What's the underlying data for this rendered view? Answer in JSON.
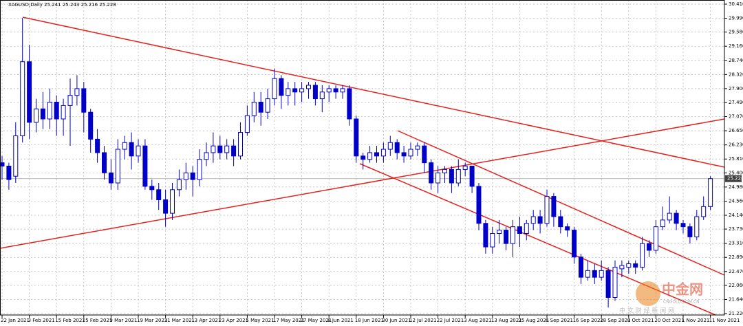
{
  "chart_data": {
    "type": "candlestick",
    "title": "XAGUSD;Daily  25.241 25.243 25.216 25.228",
    "categories": [
      "22 Jan 2021",
      null,
      null,
      null,
      "3 Feb 2021",
      null,
      null,
      null,
      "15 Feb 2021",
      null,
      null,
      null,
      "25 Feb 2021",
      null,
      null,
      null,
      "9 Mar 2021",
      null,
      null,
      null,
      "19 Mar 2021",
      null,
      null,
      null,
      "31 Mar 2021",
      null,
      null,
      null,
      "13 Apr 2021",
      null,
      null,
      null,
      "23 Apr 2021",
      null,
      null,
      null,
      "5 May 2021",
      null,
      null,
      null,
      "17 May 2021",
      null,
      null,
      null,
      "27 May 2021",
      null,
      null,
      null,
      "8 Jun 2021",
      null,
      null,
      null,
      "18 Jun 2021",
      null,
      null,
      null,
      "30 Jun 2021",
      null,
      null,
      null,
      "12 Jul 2021",
      null,
      null,
      null,
      "22 Jul 2021",
      null,
      null,
      null,
      "3 Aug 2021",
      null,
      null,
      null,
      "13 Aug 2021",
      null,
      null,
      null,
      "25 Aug 2021",
      null,
      null,
      null,
      "6 Sep 2021",
      null,
      null,
      null,
      "16 Sep 2021",
      null,
      null,
      null,
      "28 Sep 2021",
      null,
      null,
      null,
      "8 Oct 2021",
      null,
      null,
      null,
      "20 Oct 2021",
      null,
      null,
      null,
      "1 Nov 2021",
      null,
      null,
      null,
      "11 Nov 2021"
    ],
    "open": [
      25.7,
      25.6,
      25.3,
      26.5,
      28.7,
      26.9,
      27.3,
      27.0,
      27.5,
      27.0,
      27.4,
      27.7,
      27.9,
      27.2,
      26.4,
      26.0,
      25.4,
      25.1,
      26.1,
      26.3,
      25.9,
      26.2,
      25.0,
      24.9,
      24.6,
      24.2,
      24.9,
      25.2,
      25.4,
      25.2,
      25.8,
      26.0,
      26.2,
      26.0,
      26.2,
      25.9,
      26.6,
      27.1,
      27.5,
      27.2,
      27.6,
      28.2,
      27.7,
      27.9,
      27.8,
      27.9,
      28.0,
      27.6,
      27.8,
      27.9,
      27.8,
      27.9,
      27.0,
      25.9,
      25.8,
      26.0,
      25.9,
      26.1,
      26.3,
      26.0,
      25.9,
      26.1,
      26.2,
      25.7,
      25.1,
      25.4,
      25.5,
      25.1,
      25.5,
      25.6,
      25.0,
      23.9,
      23.2,
      23.6,
      23.7,
      23.3,
      23.8,
      23.6,
      23.9,
      24.1,
      23.9,
      24.7,
      24.1,
      23.8,
      23.7,
      22.9,
      22.3,
      22.5,
      22.3,
      22.5,
      21.7,
      22.55,
      22.6,
      22.7,
      22.6,
      23.3,
      23.1,
      23.8,
      24.0,
      24.2,
      23.9,
      23.8,
      23.5,
      24.1,
      24.4
    ],
    "high": [
      25.9,
      25.7,
      26.9,
      30.0,
      29.2,
      27.6,
      27.8,
      27.9,
      27.7,
      27.6,
      28.2,
      28.3,
      28.1,
      27.3,
      26.7,
      26.2,
      25.8,
      26.4,
      26.5,
      26.6,
      26.4,
      26.4,
      25.2,
      25.1,
      24.9,
      25.1,
      25.5,
      25.7,
      25.6,
      26.1,
      26.3,
      26.6,
      26.5,
      26.4,
      26.4,
      26.9,
      27.4,
      27.8,
      27.8,
      27.9,
      28.5,
      28.3,
      28.1,
      28.1,
      28.1,
      28.1,
      28.1,
      28.0,
      28.0,
      28.0,
      28.0,
      28.0,
      27.1,
      26.0,
      26.2,
      26.2,
      26.3,
      26.5,
      26.4,
      26.2,
      26.3,
      26.3,
      26.3,
      25.8,
      25.6,
      25.6,
      25.6,
      25.8,
      25.7,
      25.6,
      25.1,
      24.0,
      23.8,
      24.0,
      23.8,
      24.0,
      24.1,
      24.0,
      24.3,
      24.3,
      24.9,
      24.8,
      24.3,
      23.9,
      23.8,
      23.0,
      22.8,
      22.7,
      22.8,
      22.6,
      22.8,
      22.8,
      22.8,
      22.8,
      23.5,
      23.4,
      24.0,
      24.4,
      24.7,
      24.3,
      24.0,
      23.9,
      24.3,
      24.7,
      25.3
    ],
    "low": [
      25.2,
      24.9,
      25.1,
      26.3,
      26.4,
      26.6,
      26.7,
      26.7,
      26.5,
      26.5,
      26.2,
      27.4,
      26.6,
      26.0,
      25.7,
      25.2,
      24.9,
      24.9,
      25.8,
      25.5,
      25.7,
      24.9,
      24.6,
      24.3,
      23.8,
      24.0,
      24.7,
      24.9,
      24.7,
      25.0,
      25.6,
      25.7,
      25.8,
      25.8,
      25.6,
      25.8,
      26.5,
      26.9,
      26.8,
      27.0,
      27.4,
      27.3,
      27.4,
      27.4,
      27.5,
      27.6,
      27.4,
      27.2,
      27.5,
      27.6,
      27.6,
      26.8,
      25.7,
      25.5,
      25.7,
      25.7,
      25.7,
      25.9,
      25.8,
      25.7,
      25.8,
      25.9,
      25.4,
      24.9,
      24.8,
      25.1,
      24.8,
      25.0,
      25.3,
      24.8,
      23.7,
      23.0,
      23.0,
      23.3,
      23.1,
      22.9,
      23.2,
      23.4,
      23.7,
      23.6,
      23.8,
      23.8,
      23.6,
      23.5,
      22.7,
      22.1,
      22.2,
      22.1,
      22.2,
      21.4,
      21.6,
      22.3,
      22.4,
      22.4,
      22.5,
      22.9,
      23.0,
      23.7,
      23.9,
      23.7,
      23.6,
      23.3,
      23.4,
      24.0,
      24.3
    ],
    "close": [
      25.6,
      25.2,
      26.5,
      28.7,
      26.9,
      27.3,
      27.0,
      27.5,
      27.0,
      27.4,
      27.7,
      27.9,
      27.2,
      26.4,
      26.0,
      25.4,
      25.1,
      26.1,
      26.3,
      25.9,
      26.2,
      25.0,
      24.9,
      24.6,
      24.2,
      24.9,
      25.2,
      25.4,
      25.2,
      25.8,
      26.0,
      26.2,
      26.0,
      26.2,
      25.9,
      26.6,
      27.1,
      27.5,
      27.2,
      27.6,
      28.2,
      27.7,
      27.9,
      27.8,
      27.9,
      28.0,
      27.6,
      27.8,
      27.9,
      27.8,
      27.9,
      27.0,
      25.9,
      25.8,
      26.0,
      25.9,
      26.1,
      26.3,
      26.0,
      25.9,
      26.1,
      26.2,
      25.7,
      25.1,
      25.4,
      25.5,
      25.1,
      25.5,
      25.6,
      25.0,
      23.9,
      23.2,
      23.6,
      23.7,
      23.3,
      23.8,
      23.6,
      23.9,
      24.1,
      23.9,
      24.7,
      24.1,
      23.8,
      23.7,
      22.9,
      22.3,
      22.5,
      22.3,
      22.5,
      21.7,
      22.6,
      22.65,
      22.7,
      22.6,
      23.3,
      23.1,
      23.8,
      24.0,
      24.2,
      23.9,
      23.8,
      23.5,
      24.1,
      24.4,
      25.228
    ],
    "color": "#0000c8",
    "ylim": [
      21.22,
      30.41
    ],
    "yticks": [
      {
        "value": 30.41,
        "label": "30.410"
      },
      {
        "value": 29.99,
        "label": "29.990"
      },
      {
        "value": 29.58,
        "label": "29.580"
      },
      {
        "value": 29.16,
        "label": "29.160"
      },
      {
        "value": 28.74,
        "label": "28.740"
      },
      {
        "value": 28.32,
        "label": "28.320"
      },
      {
        "value": 27.9,
        "label": "27.900"
      },
      {
        "value": 27.49,
        "label": "27.490"
      },
      {
        "value": 27.07,
        "label": "27.070"
      },
      {
        "value": 26.65,
        "label": "26.650"
      },
      {
        "value": 26.23,
        "label": "26.230"
      },
      {
        "value": 25.81,
        "label": "25.810"
      },
      {
        "value": 25.4,
        "label": "25.400"
      },
      {
        "value": 24.98,
        "label": "24.980"
      },
      {
        "value": 24.56,
        "label": "24.560"
      },
      {
        "value": 24.14,
        "label": "24.140"
      },
      {
        "value": 23.73,
        "label": "23.730"
      },
      {
        "value": 23.31,
        "label": "23.310"
      },
      {
        "value": 22.89,
        "label": "22.890"
      },
      {
        "value": 22.47,
        "label": "22.470"
      },
      {
        "value": 22.06,
        "label": "22.060"
      },
      {
        "value": 21.64,
        "label": "21.640"
      },
      {
        "value": 21.22,
        "label": "21.220"
      }
    ],
    "last_price": {
      "value": 25.228,
      "label": "25.228"
    },
    "grid": true
  },
  "watermark": {
    "brand": "中金网",
    "url": "CNGOLD.COM.CN",
    "tagline": "中 文 财 经 新 闻 网"
  }
}
